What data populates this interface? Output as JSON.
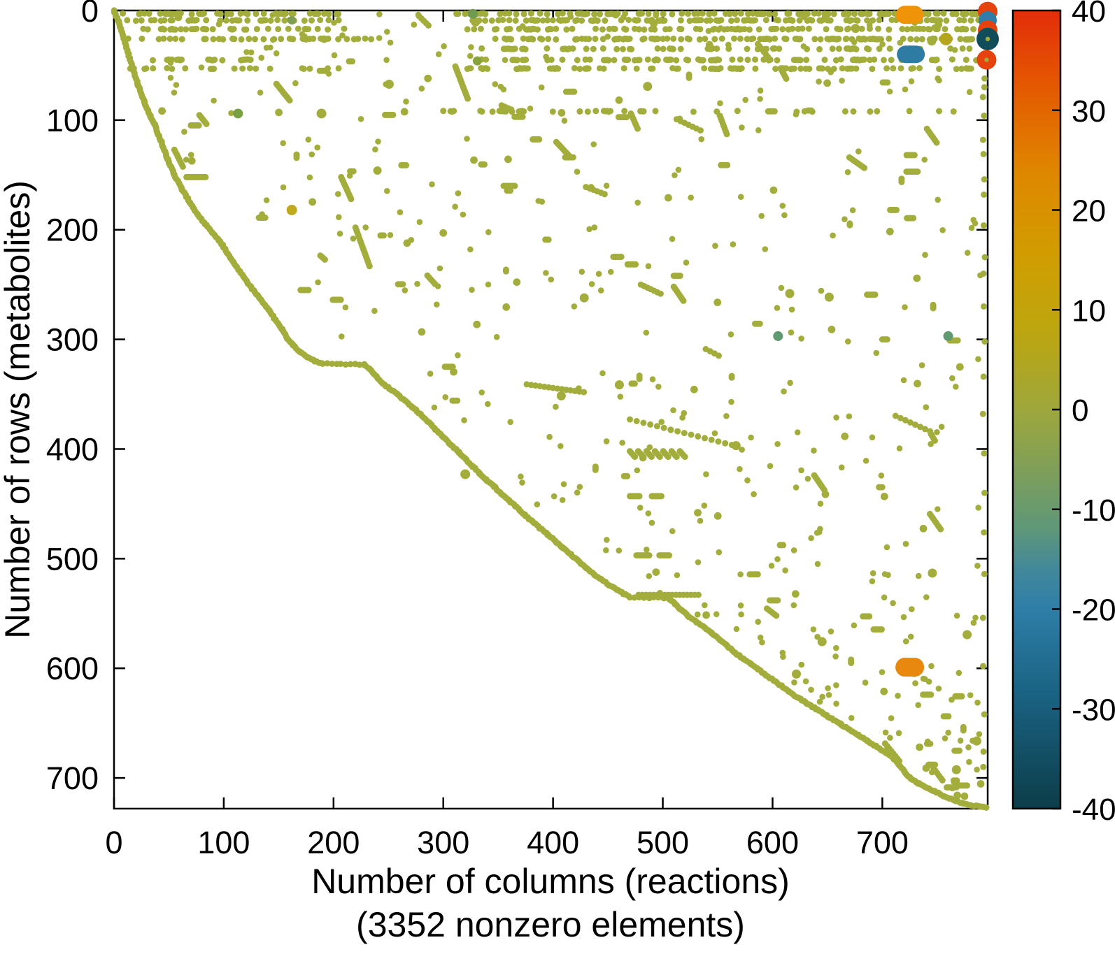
{
  "figure": {
    "background": "#ffffff"
  },
  "chart_data": {
    "type": "scatter",
    "variant": "sparsity-spy-plot",
    "title": "",
    "xlabel_line1": "Number of columns (reactions)",
    "xlabel_line2": "(3352 nonzero elements)",
    "ylabel": "Number of rows (metabolites)",
    "nonzero_elements": 3352,
    "xlim": [
      0,
      796
    ],
    "ylim": [
      0,
      728
    ],
    "y_inverted": true,
    "grid": false,
    "x_ticks": [
      0,
      100,
      200,
      300,
      400,
      500,
      600,
      700
    ],
    "y_ticks": [
      0,
      100,
      200,
      300,
      400,
      500,
      600,
      700
    ],
    "marker_color": "#a2ad3b",
    "axis_color": "#000000",
    "colorbar": {
      "min": -40,
      "max": 40,
      "ticks": [
        40,
        30,
        20,
        10,
        0,
        -10,
        -20,
        -30,
        -40
      ],
      "stops": [
        [
          0,
          "#e32d0a"
        ],
        [
          0.1,
          "#e45b00"
        ],
        [
          0.2,
          "#df8600"
        ],
        [
          0.3,
          "#d29c00"
        ],
        [
          0.4,
          "#bda60f"
        ],
        [
          0.5,
          "#9ea73c"
        ],
        [
          0.575,
          "#7f9f59"
        ],
        [
          0.65,
          "#5e9779"
        ],
        [
          0.7,
          "#42889b"
        ],
        [
          0.75,
          "#2e7ea8"
        ],
        [
          0.85,
          "#1b6485"
        ],
        [
          1,
          "#0c3d49"
        ]
      ]
    },
    "main_curve": [
      [
        0,
        0
      ],
      [
        4,
        10
      ],
      [
        8,
        22
      ],
      [
        12,
        36
      ],
      [
        17,
        52
      ],
      [
        22,
        68
      ],
      [
        28,
        84
      ],
      [
        33,
        96
      ],
      [
        37,
        104
      ],
      [
        43,
        120
      ],
      [
        49,
        136
      ],
      [
        55,
        150
      ],
      [
        62,
        163
      ],
      [
        69,
        175
      ],
      [
        76,
        186
      ],
      [
        84,
        196
      ],
      [
        90,
        203
      ],
      [
        97,
        211
      ],
      [
        104,
        222
      ],
      [
        111,
        233
      ],
      [
        118,
        243
      ],
      [
        126,
        254
      ],
      [
        134,
        264
      ],
      [
        141,
        273
      ],
      [
        147,
        282
      ],
      [
        153,
        291
      ],
      [
        158,
        299
      ],
      [
        163,
        305
      ],
      [
        169,
        311
      ],
      [
        176,
        316
      ],
      [
        183,
        320
      ],
      [
        190,
        322
      ],
      [
        228,
        323
      ],
      [
        233,
        327
      ],
      [
        239,
        334
      ],
      [
        245,
        340
      ],
      [
        251,
        345
      ],
      [
        258,
        350
      ],
      [
        265,
        356
      ],
      [
        272,
        362
      ],
      [
        279,
        368
      ],
      [
        286,
        375
      ],
      [
        293,
        382
      ],
      [
        300,
        389
      ],
      [
        307,
        396
      ],
      [
        314,
        403
      ],
      [
        321,
        410
      ],
      [
        327,
        416
      ],
      [
        333,
        422
      ],
      [
        339,
        428
      ],
      [
        346,
        434
      ],
      [
        353,
        441
      ],
      [
        360,
        447
      ],
      [
        367,
        453
      ],
      [
        374,
        460
      ],
      [
        381,
        466
      ],
      [
        388,
        472
      ],
      [
        395,
        478
      ],
      [
        402,
        484
      ],
      [
        409,
        490
      ],
      [
        416,
        496
      ],
      [
        423,
        502
      ],
      [
        430,
        508
      ],
      [
        437,
        514
      ],
      [
        444,
        519
      ],
      [
        451,
        524
      ],
      [
        458,
        528
      ],
      [
        464,
        532
      ],
      [
        470,
        535
      ],
      [
        505,
        536
      ],
      [
        511,
        541
      ],
      [
        517,
        547
      ],
      [
        524,
        553
      ],
      [
        531,
        558
      ],
      [
        538,
        563
      ],
      [
        545,
        568
      ],
      [
        552,
        574
      ],
      [
        559,
        580
      ],
      [
        566,
        586
      ],
      [
        573,
        591
      ],
      [
        580,
        596
      ],
      [
        587,
        601
      ],
      [
        594,
        606
      ],
      [
        601,
        611
      ],
      [
        608,
        616
      ],
      [
        615,
        621
      ],
      [
        622,
        626
      ],
      [
        630,
        631
      ],
      [
        638,
        636
      ],
      [
        646,
        641
      ],
      [
        654,
        646
      ],
      [
        662,
        651
      ],
      [
        670,
        656
      ],
      [
        678,
        661
      ],
      [
        686,
        666
      ],
      [
        694,
        671
      ],
      [
        702,
        676
      ],
      [
        708,
        680
      ],
      [
        714,
        686
      ],
      [
        720,
        694
      ],
      [
        726,
        701
      ],
      [
        733,
        705
      ],
      [
        741,
        709
      ],
      [
        749,
        713
      ],
      [
        757,
        717
      ],
      [
        765,
        720
      ],
      [
        773,
        723
      ],
      [
        781,
        725
      ],
      [
        789,
        726
      ],
      [
        795,
        727
      ]
    ],
    "band_rows": [
      {
        "y": 3,
        "segs": [
          [
            8,
            205,
            0.55
          ],
          [
            312,
            795,
            0.72
          ]
        ]
      },
      {
        "y": 9,
        "segs": [
          [
            12,
            205,
            0.5
          ],
          [
            318,
            792,
            0.6
          ]
        ]
      },
      {
        "y": 17,
        "segs": [
          [
            18,
            215,
            0.42
          ],
          [
            322,
            786,
            0.52
          ]
        ]
      },
      {
        "y": 26,
        "segs": [
          [
            10,
            235,
            0.48
          ],
          [
            330,
            795,
            0.58
          ]
        ]
      },
      {
        "y": 35,
        "segs": [
          [
            335,
            780,
            0.3
          ]
        ]
      },
      {
        "y": 45,
        "segs": [
          [
            18,
            130,
            0.28
          ],
          [
            335,
            792,
            0.45
          ]
        ]
      },
      {
        "y": 53,
        "segs": [
          [
            12,
            205,
            0.32
          ],
          [
            322,
            782,
            0.4
          ]
        ]
      },
      {
        "y": 92,
        "segs": [
          [
            300,
            788,
            0.2
          ]
        ]
      }
    ],
    "runs": {
      "dashes": [
        {
          "x": 66,
          "y": 152,
          "n": 13
        },
        {
          "x": 470,
          "y": 443,
          "n": 7
        },
        {
          "x": 490,
          "y": 443,
          "n": 7
        },
        {
          "x": 476,
          "y": 497,
          "n": 9
        },
        {
          "x": 497,
          "y": 497,
          "n": 7
        },
        {
          "x": 478,
          "y": 533,
          "n": 17,
          "sp": 3.4
        },
        {
          "x": 132,
          "y": 189,
          "n": 5
        },
        {
          "x": 355,
          "y": 160,
          "n": 8
        },
        {
          "x": 553,
          "y": 141,
          "n": 5
        },
        {
          "x": 510,
          "y": 242,
          "n": 5
        },
        {
          "x": 722,
          "y": 147,
          "n": 8
        },
        {
          "x": 365,
          "y": 97,
          "n": 6
        },
        {
          "x": 700,
          "y": 300,
          "n": 4
        },
        {
          "x": 596,
          "y": 92,
          "n": 5
        }
      ],
      "diagonals": [
        {
          "x": 311,
          "y": 51,
          "n": 15,
          "dx": 0.8,
          "dy": 2.1
        },
        {
          "x": 148,
          "y": 67,
          "n": 11,
          "dx": 1.2,
          "dy": 1.5
        },
        {
          "x": 55,
          "y": 127,
          "n": 8,
          "dx": 1.1,
          "dy": 2.2
        },
        {
          "x": 207,
          "y": 152,
          "n": 11,
          "dx": 0.9,
          "dy": 2.0
        },
        {
          "x": 220,
          "y": 198,
          "n": 17,
          "dx": 0.8,
          "dy": 2.2
        },
        {
          "x": 403,
          "y": 120,
          "n": 10,
          "dx": 1.3,
          "dy": 1.4
        },
        {
          "x": 670,
          "y": 134,
          "n": 9,
          "dx": 1.7,
          "dy": 1.2
        },
        {
          "x": 376,
          "y": 341,
          "n": 14,
          "dx": 4.0,
          "dy": 0.55
        },
        {
          "x": 470,
          "y": 373,
          "n": 16,
          "dx": 6.2,
          "dy": 1.55
        },
        {
          "x": 638,
          "y": 424,
          "n": 8,
          "dx": 1.3,
          "dy": 1.9
        },
        {
          "x": 471,
          "y": 94,
          "n": 7,
          "dx": 1.0,
          "dy": 2.3
        },
        {
          "x": 552,
          "y": 96,
          "n": 8,
          "dx": 0.9,
          "dy": 2.4
        },
        {
          "x": 510,
          "y": 252,
          "n": 9,
          "dx": 1.1,
          "dy": 1.6
        },
        {
          "x": 430,
          "y": 161,
          "n": 6,
          "dx": 3.4,
          "dy": 1.3
        },
        {
          "x": 480,
          "y": 250,
          "n": 7,
          "dx": 3.0,
          "dy": 1.4
        }
      ],
      "hatch": {
        "x": 470,
        "y": 402,
        "count": 7,
        "spacing": 7.6,
        "len": 4,
        "dx": 1.5,
        "dy": 1.7
      }
    },
    "right_edge_x": 792.5,
    "right_edge_dots_y": [
      62,
      70,
      79,
      96,
      118,
      131,
      154,
      168,
      196,
      225,
      240,
      270,
      302,
      334,
      368,
      404,
      440,
      476,
      514,
      554,
      598,
      642,
      676,
      690
    ],
    "special_olive": [
      {
        "x": 113,
        "y": 94,
        "r": 7,
        "c": "#79a144"
      },
      {
        "x": 189,
        "y": 94,
        "r": 7
      },
      {
        "x": 162,
        "y": 9,
        "r": 6,
        "c": "#7f9e55"
      },
      {
        "x": 327,
        "y": 3,
        "r": 7,
        "c": "#6f9a50"
      },
      {
        "x": 331,
        "y": 46,
        "r": 6.5,
        "c": "#8aa23c"
      },
      {
        "x": 320,
        "y": 423,
        "r": 7
      },
      {
        "x": 240,
        "y": 146,
        "r": 6
      }
    ],
    "special_markers": [
      {
        "shape": "capsule",
        "x": 725,
        "y": 4,
        "w": 40,
        "h": 26,
        "color": "#ef9408"
      },
      {
        "shape": "capsule",
        "x": 726,
        "y": 40,
        "w": 40,
        "h": 25,
        "color": "#2e7ca4"
      },
      {
        "shape": "capsule",
        "x": 725,
        "y": 599,
        "w": 41,
        "h": 27,
        "color": "#e8880e"
      },
      {
        "shape": "circle",
        "x": 758,
        "y": 26,
        "r": 9,
        "color": "#b5a51d"
      },
      {
        "shape": "circle",
        "x": 760,
        "y": 297,
        "r": 7,
        "color": "#5f9a73"
      },
      {
        "shape": "circle",
        "x": 605,
        "y": 297,
        "r": 7,
        "color": "#5f9a73"
      },
      {
        "shape": "circle",
        "x": 162,
        "y": 182,
        "r": 7.5,
        "color": "#bfa91e"
      },
      {
        "shape": "circle",
        "x": 796,
        "y": 1,
        "r": 14,
        "color": "#e5420e"
      },
      {
        "shape": "circle",
        "x": 796,
        "y": 9,
        "r": 13,
        "color": "#2e7ea8"
      },
      {
        "shape": "circle",
        "x": 796,
        "y": 18,
        "r": 14,
        "color": "#e5420e"
      },
      {
        "shape": "circle",
        "x": 796,
        "y": 26,
        "r": 16,
        "color": "#114d58",
        "center_dot": true
      },
      {
        "shape": "circle",
        "x": 795,
        "y": 45,
        "r": 14,
        "color": "#e5420e",
        "center_dot": true
      }
    ],
    "pattern": {
      "seed": 20240613,
      "singles": 430,
      "dash_runs": 46,
      "diag_runs": 16,
      "vert_runs": 12,
      "margin": 10
    }
  }
}
